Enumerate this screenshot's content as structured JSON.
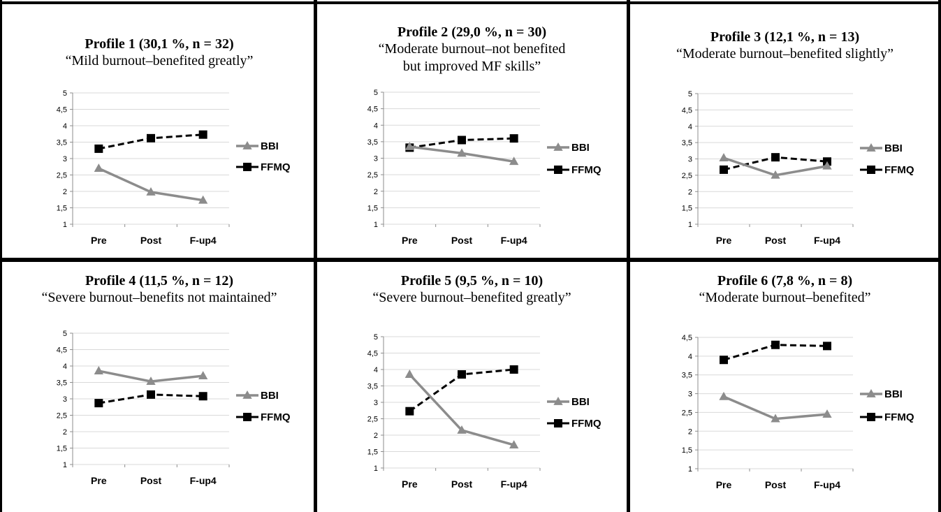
{
  "colors": {
    "bbi": "#8c8c8c",
    "ffmq": "#000000",
    "grid": "#d9d9d9",
    "border": "#000000"
  },
  "chart_data": [
    {
      "type": "line",
      "title": "Profile 1 (30,1 %, n = 32)",
      "subtitle": [
        "“Mild burnout–benefited greatly”"
      ],
      "categories": [
        "Pre",
        "Post",
        "F-up4"
      ],
      "ylim": [
        1,
        5
      ],
      "yticks": [
        "1",
        "1,5",
        "2",
        "2,5",
        "3",
        "3,5",
        "4",
        "4,5",
        "5"
      ],
      "series": [
        {
          "name": "BBI",
          "values": [
            2.7,
            1.98,
            1.73
          ]
        },
        {
          "name": "FFMQ",
          "values": [
            3.3,
            3.62,
            3.73
          ]
        }
      ],
      "grid": true,
      "legend": "right"
    },
    {
      "type": "line",
      "title": "Profile 2 (29,0 %, n = 30)",
      "subtitle": [
        "“Moderate burnout–not benefited",
        "but improved MF skills”"
      ],
      "categories": [
        "Pre",
        "Post",
        "F-up4"
      ],
      "ylim": [
        1,
        5
      ],
      "yticks": [
        "1",
        "1,5",
        "2",
        "2,5",
        "3",
        "3,5",
        "4",
        "4,5",
        "5"
      ],
      "series": [
        {
          "name": "BBI",
          "values": [
            3.35,
            3.15,
            2.9
          ]
        },
        {
          "name": "FFMQ",
          "values": [
            3.32,
            3.55,
            3.6
          ]
        }
      ],
      "grid": true,
      "legend": "right"
    },
    {
      "type": "line",
      "title": "Profile 3 (12,1 %, n = 13)",
      "subtitle": [
        "“Moderate burnout–benefited slightly”"
      ],
      "categories": [
        "Pre",
        "Post",
        "F-up4"
      ],
      "ylim": [
        1,
        5
      ],
      "yticks": [
        "1",
        "1,5",
        "2",
        "2,5",
        "3",
        "3,5",
        "4",
        "4,5",
        "5"
      ],
      "series": [
        {
          "name": "BBI",
          "values": [
            3.03,
            2.5,
            2.78
          ]
        },
        {
          "name": "FFMQ",
          "values": [
            2.67,
            3.05,
            2.92
          ]
        }
      ],
      "grid": true,
      "legend": "right"
    },
    {
      "type": "line",
      "title": "Profile 4 (11,5 %, n = 12)",
      "subtitle": [
        "“Severe burnout–benefits not maintained”"
      ],
      "categories": [
        "Pre",
        "Post",
        "F-up4"
      ],
      "ylim": [
        1,
        5
      ],
      "yticks": [
        "1",
        "1,5",
        "2",
        "2,5",
        "3",
        "3,5",
        "4",
        "4,5",
        "5"
      ],
      "series": [
        {
          "name": "BBI",
          "values": [
            3.85,
            3.53,
            3.7
          ]
        },
        {
          "name": "FFMQ",
          "values": [
            2.87,
            3.13,
            3.08
          ]
        }
      ],
      "grid": true,
      "legend": "right"
    },
    {
      "type": "line",
      "title": "Profile 5 (9,5 %, n = 10)",
      "subtitle": [
        "“Severe burnout–benefited greatly”"
      ],
      "categories": [
        "Pre",
        "Post",
        "F-up4"
      ],
      "ylim": [
        1,
        5
      ],
      "yticks": [
        "1",
        "1,5",
        "2",
        "2,5",
        "3",
        "3,5",
        "4",
        "4,5",
        "5"
      ],
      "series": [
        {
          "name": "BBI",
          "values": [
            3.85,
            2.15,
            1.7
          ]
        },
        {
          "name": "FFMQ",
          "values": [
            2.73,
            3.85,
            4.0
          ]
        }
      ],
      "grid": true,
      "legend": "right"
    },
    {
      "type": "line",
      "title": "Profile 6 (7,8 %, n = 8)",
      "subtitle": [
        "“Moderate burnout–benefited”"
      ],
      "categories": [
        "Pre",
        "Post",
        "F-up4"
      ],
      "ylim": [
        1,
        4.5
      ],
      "yticks": [
        "1",
        "1,5",
        "2",
        "2,5",
        "3",
        "3,5",
        "4",
        "4,5"
      ],
      "series": [
        {
          "name": "BBI",
          "values": [
            2.92,
            2.33,
            2.45
          ]
        },
        {
          "name": "FFMQ",
          "values": [
            3.9,
            4.3,
            4.27
          ]
        }
      ],
      "grid": true,
      "legend": "right"
    }
  ]
}
